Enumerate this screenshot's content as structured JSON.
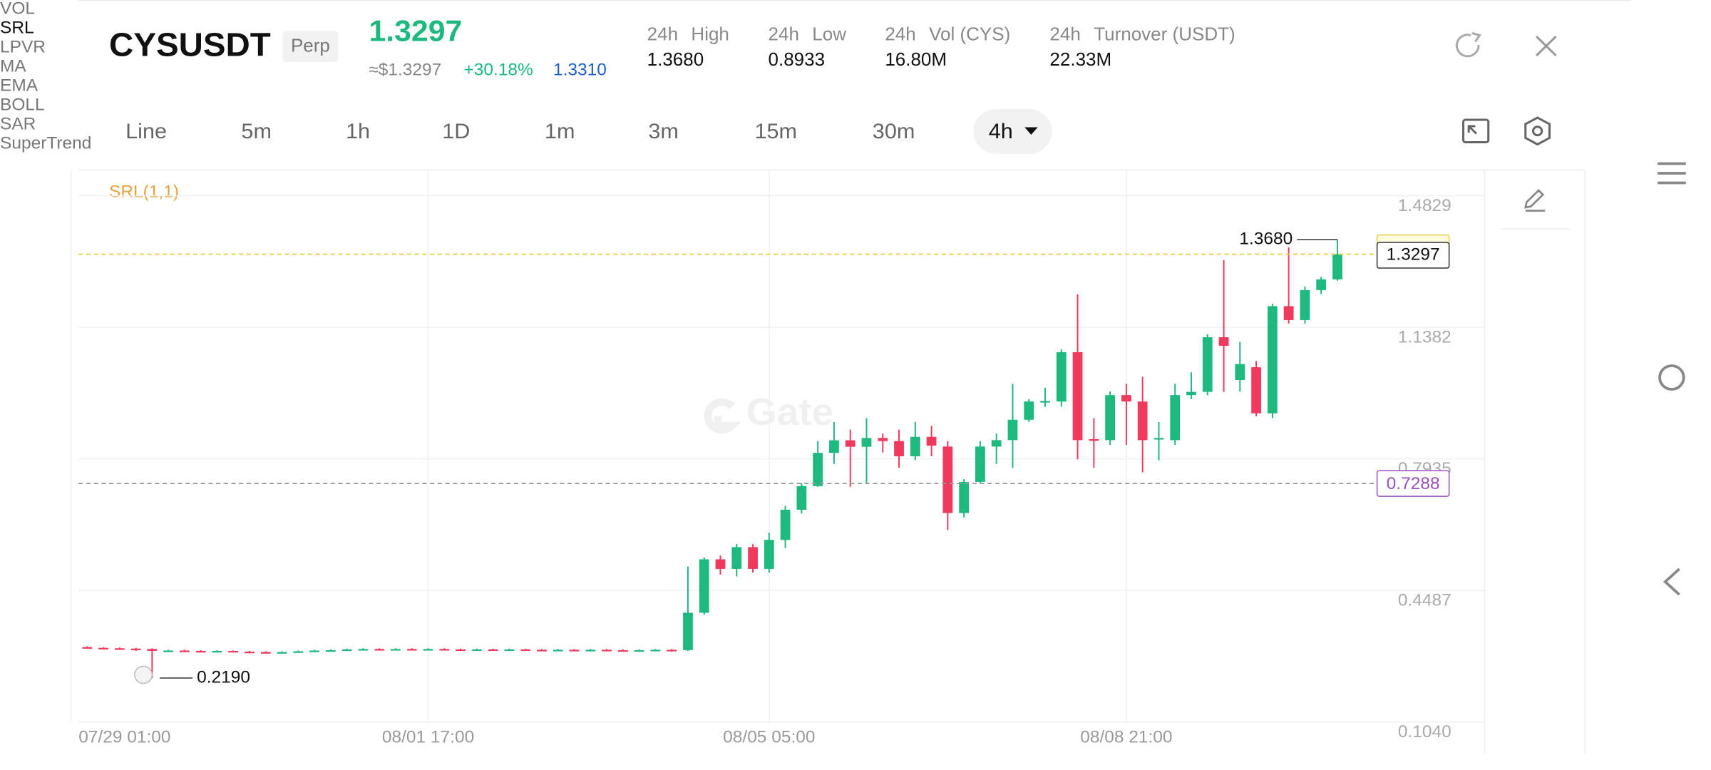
{
  "header": {
    "symbol": "CYSUSDT",
    "badge": "Perp",
    "last_price": "1.3297",
    "fiat_price": "≈$1.3297",
    "change": "+30.18%",
    "mark_price": "1.3310",
    "stats": [
      {
        "period": "24h",
        "label": "High",
        "value": "1.3680"
      },
      {
        "period": "24h",
        "label": "Low",
        "value": "0.8933"
      },
      {
        "period": "24h",
        "label": "Vol (CYS)",
        "value": "16.80M"
      },
      {
        "period": "24h",
        "label": "Turnover (USDT)",
        "value": "22.33M"
      }
    ]
  },
  "timeframes": [
    "Line",
    "5m",
    "1h",
    "1D",
    "1m",
    "3m",
    "15m",
    "30m"
  ],
  "active_timeframe": "4h",
  "indicators": [
    {
      "label": "VOL",
      "active": false
    },
    {
      "label": "SRL",
      "active": true
    },
    {
      "label": "LPVR",
      "active": false
    },
    {
      "label": "MA",
      "active": false
    },
    {
      "label": "EMA",
      "active": false
    },
    {
      "label": "BOLL",
      "active": false
    },
    {
      "label": "SAR",
      "active": false
    },
    {
      "label": "SuperTrend",
      "active": false
    }
  ],
  "watermark": "Gate",
  "chart_data": {
    "type": "candlestick",
    "legend": "SRL(1,1)",
    "up_color": "#1db97e",
    "down_color": "#ef3a5d",
    "categories": [
      "07/29 01:00",
      null,
      null,
      null,
      null,
      null,
      null,
      null,
      null,
      null,
      null,
      null,
      null,
      null,
      null,
      null,
      null,
      null,
      null,
      null,
      null,
      null,
      "08/01 17:00",
      null,
      null,
      null,
      null,
      null,
      null,
      null,
      null,
      null,
      null,
      null,
      null,
      null,
      null,
      null,
      null,
      null,
      null,
      null,
      null,
      "08/05 05:00",
      null,
      null,
      null,
      null,
      null,
      null,
      null,
      null,
      null,
      null,
      null,
      null,
      null,
      null,
      null,
      null,
      null,
      null,
      null,
      null,
      null,
      "08/08 21:00",
      null,
      null,
      null,
      null,
      null,
      null,
      null,
      null,
      null,
      null,
      null,
      null,
      null
    ],
    "open": [
      0.301,
      0.3,
      0.298,
      0.297,
      0.296,
      0.295,
      0.29,
      0.291,
      0.29,
      0.289,
      0.29,
      0.288,
      0.287,
      0.286,
      0.287,
      0.289,
      0.291,
      0.292,
      0.294,
      0.295,
      0.294,
      0.295,
      0.294,
      0.295,
      0.294,
      0.293,
      0.294,
      0.293,
      0.294,
      0.293,
      0.292,
      0.293,
      0.292,
      0.293,
      0.292,
      0.291,
      0.292,
      0.293,
      0.292,
      0.39,
      0.53,
      0.505,
      0.562,
      0.505,
      0.581,
      0.66,
      0.722,
      0.809,
      0.842,
      0.825,
      0.848,
      0.84,
      0.8,
      0.851,
      0.8256,
      0.6514,
      0.7329,
      0.8256,
      0.8424,
      0.8958,
      0.943,
      0.9436,
      1.0728,
      0.845,
      0.8424,
      0.9604,
      0.9436,
      0.844,
      0.8424,
      0.9604,
      0.9689,
      1.1121,
      1.0,
      1.0335,
      0.9127,
      1.1936,
      1.1571,
      1.2357,
      1.2638
    ],
    "close": [
      0.3,
      0.298,
      0.297,
      0.296,
      0.295,
      0.29,
      0.291,
      0.29,
      0.289,
      0.29,
      0.288,
      0.287,
      0.286,
      0.287,
      0.289,
      0.291,
      0.292,
      0.294,
      0.295,
      0.294,
      0.295,
      0.294,
      0.295,
      0.294,
      0.293,
      0.294,
      0.293,
      0.294,
      0.293,
      0.292,
      0.293,
      0.292,
      0.293,
      0.292,
      0.291,
      0.292,
      0.293,
      0.29,
      0.39,
      0.53,
      0.505,
      0.562,
      0.505,
      0.581,
      0.66,
      0.722,
      0.809,
      0.842,
      0.825,
      0.848,
      0.84,
      0.8,
      0.851,
      0.828,
      0.6514,
      0.7329,
      0.8256,
      0.8424,
      0.8958,
      0.9436,
      0.945,
      1.0728,
      0.8424,
      0.8424,
      0.9604,
      0.9436,
      0.8424,
      0.8481,
      0.9604,
      0.9689,
      1.1121,
      1.0896,
      1.0419,
      0.9127,
      1.1936,
      1.1571,
      1.2357,
      1.2638,
      1.3297
    ],
    "high": [
      0.303,
      0.302,
      0.3,
      0.299,
      0.298,
      0.297,
      0.293,
      0.293,
      0.292,
      0.292,
      0.291,
      0.29,
      0.289,
      0.289,
      0.291,
      0.293,
      0.294,
      0.296,
      0.297,
      0.297,
      0.297,
      0.297,
      0.297,
      0.297,
      0.296,
      0.296,
      0.296,
      0.296,
      0.296,
      0.295,
      0.295,
      0.295,
      0.295,
      0.295,
      0.294,
      0.294,
      0.295,
      0.295,
      0.511,
      0.535,
      0.54,
      0.57,
      0.57,
      0.6,
      0.67,
      0.73,
      0.84,
      0.89,
      0.87,
      0.9,
      0.86,
      0.87,
      0.89,
      0.88,
      0.84,
      0.74,
      0.84,
      0.86,
      0.99,
      0.95,
      0.98,
      1.08,
      1.2245,
      0.9,
      0.97,
      0.99,
      1.0082,
      0.89,
      0.99,
      1.02,
      1.12,
      1.3144,
      1.1,
      1.05,
      1.2,
      1.3481,
      1.245,
      1.27,
      1.368
    ],
    "low": [
      0.298,
      0.296,
      0.295,
      0.294,
      0.29,
      0.219,
      0.288,
      0.288,
      0.287,
      0.287,
      0.286,
      0.285,
      0.284,
      0.284,
      0.285,
      0.287,
      0.289,
      0.29,
      0.292,
      0.292,
      0.292,
      0.292,
      0.292,
      0.292,
      0.291,
      0.291,
      0.291,
      0.291,
      0.291,
      0.29,
      0.29,
      0.29,
      0.29,
      0.29,
      0.289,
      0.289,
      0.29,
      0.288,
      0.29,
      0.385,
      0.49,
      0.485,
      0.495,
      0.495,
      0.56,
      0.65,
      0.72,
      0.78,
      0.72,
      0.73,
      0.81,
      0.77,
      0.79,
      0.8,
      0.6065,
      0.64,
      0.73,
      0.78,
      0.77,
      0.89,
      0.93,
      0.93,
      0.7919,
      0.77,
      0.83,
      0.83,
      0.7582,
      0.79,
      0.83,
      0.95,
      0.96,
      0.9689,
      0.97,
      0.905,
      0.9,
      1.148,
      1.148,
      1.225,
      1.26
    ],
    "ylim": [
      0.104,
      1.5503
    ],
    "yticks": [
      {
        "value": 0.104,
        "label": "0.1040"
      },
      0.4487,
      0.7935,
      1.1382,
      1.4829
    ],
    "grid": true,
    "last_price": 1.3297,
    "last_price_color": "#e6d24a",
    "price_line": 0.7288,
    "price_line_color": "#9b4fc2",
    "high_marker": {
      "index": 78,
      "value": 1.368,
      "label": "1.3680"
    },
    "low_marker": {
      "index": 5,
      "value": 0.219,
      "label": "0.2190"
    }
  }
}
